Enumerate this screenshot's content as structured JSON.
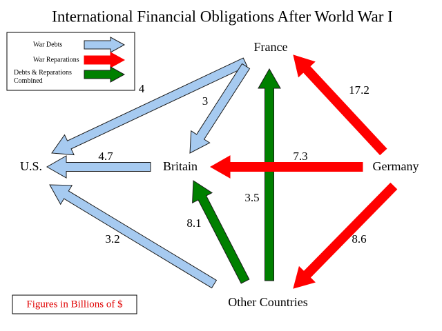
{
  "title": "International Financial Obligations After World War I",
  "legend": [
    {
      "label": "War Debts",
      "color": "#a6caf0"
    },
    {
      "label": "War Reparations",
      "color": "#ff0000"
    },
    {
      "label": "Debts & Reparations Combined",
      "color": "#008000"
    }
  ],
  "nodes": [
    {
      "label": "France"
    },
    {
      "label": "U.S."
    },
    {
      "label": "Britain"
    },
    {
      "label": "Germany"
    },
    {
      "label": "Other Countries"
    }
  ],
  "edges": [
    {
      "label": "4"
    },
    {
      "label": "3"
    },
    {
      "label": "4.7"
    },
    {
      "label": "3.2"
    },
    {
      "label": "8.1"
    },
    {
      "label": "3.5"
    },
    {
      "label": "17.2"
    },
    {
      "label": "7.3"
    },
    {
      "label": "8.6"
    }
  ],
  "note": "Figures in Billions of $"
}
